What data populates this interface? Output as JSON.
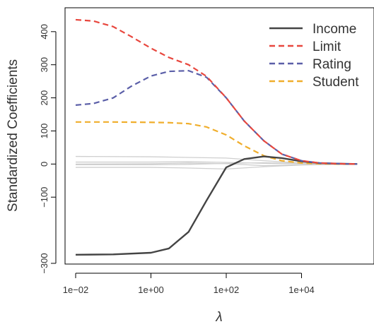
{
  "chart_data": {
    "type": "line",
    "title": "",
    "xlabel": "λ",
    "ylabel": "Standardized Coefficients",
    "x_scale": "log10",
    "xlim": [
      0.01,
      500000
    ],
    "ylim": [
      -300,
      470
    ],
    "x_ticks": [
      {
        "value": 0.01,
        "label": "1e−02"
      },
      {
        "value": 1,
        "label": "1e+00"
      },
      {
        "value": 100,
        "label": "1e+02"
      },
      {
        "value": 10000,
        "label": "1e+04"
      }
    ],
    "y_ticks": [
      {
        "value": -300,
        "label": "−300"
      },
      {
        "value": -100,
        "label": "−100"
      },
      {
        "value": 0,
        "label": "0"
      },
      {
        "value": 100,
        "label": "100"
      },
      {
        "value": 200,
        "label": "200"
      },
      {
        "value": 300,
        "label": "300"
      },
      {
        "value": 400,
        "label": "400"
      }
    ],
    "grid": false,
    "legend_position": "top-right",
    "series": [
      {
        "name": "Income",
        "color": "#444444",
        "dash": "solid",
        "x": [
          0.01,
          0.1,
          1,
          3,
          10,
          30,
          100,
          300,
          1000,
          3000,
          10000,
          30000,
          100000,
          300000
        ],
        "y": [
          -274,
          -273,
          -268,
          -255,
          -205,
          -110,
          -10,
          15,
          23,
          18,
          8,
          3,
          1,
          0
        ]
      },
      {
        "name": "Limit",
        "color": "#e8473e",
        "dash": "dashed",
        "x": [
          0.01,
          0.03,
          0.1,
          0.3,
          1,
          3,
          10,
          30,
          100,
          300,
          1000,
          3000,
          10000,
          30000,
          100000,
          300000
        ],
        "y": [
          436,
          432,
          415,
          385,
          350,
          322,
          300,
          265,
          200,
          130,
          70,
          30,
          10,
          3,
          1,
          0
        ]
      },
      {
        "name": "Rating",
        "color": "#5b5fa8",
        "dash": "dashed",
        "x": [
          0.01,
          0.03,
          0.1,
          0.3,
          1,
          3,
          10,
          30,
          100,
          300,
          1000,
          3000,
          10000,
          30000,
          100000,
          300000
        ],
        "y": [
          178,
          183,
          200,
          235,
          266,
          280,
          282,
          262,
          200,
          130,
          70,
          30,
          10,
          3,
          1,
          0
        ]
      },
      {
        "name": "Student",
        "color": "#f0ae2c",
        "dash": "dashed",
        "x": [
          0.01,
          0.1,
          1,
          3,
          10,
          30,
          100,
          300,
          1000,
          3000,
          10000,
          30000,
          100000,
          300000
        ],
        "y": [
          127,
          127,
          126,
          125,
          122,
          112,
          88,
          55,
          25,
          10,
          3,
          1,
          0,
          0
        ]
      },
      {
        "color": "#cfcfcf",
        "dash": "solid",
        "x": [
          0.01,
          1,
          10,
          100,
          1000,
          10000,
          100000,
          300000
        ],
        "y": [
          23,
          22,
          20,
          18,
          10,
          3,
          1,
          0
        ]
      },
      {
        "color": "#cfcfcf",
        "dash": "solid",
        "x": [
          0.01,
          1,
          10,
          100,
          1000,
          10000,
          100000,
          300000
        ],
        "y": [
          6,
          6,
          7,
          5,
          2,
          1,
          0,
          0
        ]
      },
      {
        "color": "#cfcfcf",
        "dash": "solid",
        "x": [
          0.01,
          1,
          10,
          100,
          1000,
          10000,
          100000,
          300000
        ],
        "y": [
          -2,
          -2,
          -1,
          2,
          4,
          2,
          0,
          0
        ]
      },
      {
        "color": "#cfcfcf",
        "dash": "solid",
        "x": [
          0.01,
          1,
          10,
          100,
          1000,
          10000,
          100000,
          300000
        ],
        "y": [
          -10,
          -10,
          -12,
          -15,
          -8,
          -3,
          -1,
          0
        ]
      },
      {
        "color": "#cfcfcf",
        "dash": "solid",
        "x": [
          0.01,
          1,
          10,
          100,
          1000,
          10000,
          100000,
          300000
        ],
        "y": [
          0,
          1,
          3,
          1,
          -5,
          -2,
          0,
          0
        ]
      }
    ]
  }
}
